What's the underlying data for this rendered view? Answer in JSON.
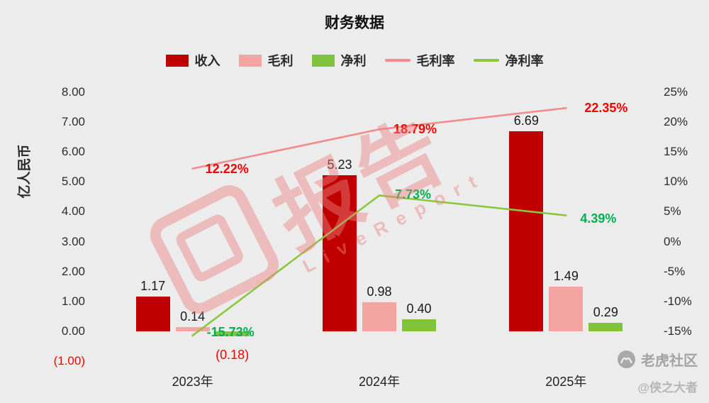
{
  "title": "财务数据",
  "ylabel_left": "亿人民币",
  "legend": [
    {
      "label": "收入",
      "type": "bar",
      "color": "#c00000"
    },
    {
      "label": "毛利",
      "type": "bar",
      "color": "#f4a4a1"
    },
    {
      "label": "净利",
      "type": "bar",
      "color": "#82c33c"
    },
    {
      "label": "毛利率",
      "type": "line",
      "color": "#f28b8b"
    },
    {
      "label": "净利率",
      "type": "line",
      "color": "#8cc63e"
    }
  ],
  "chart_data": {
    "type": "bar",
    "subtype": "bar+line combo, dual axis",
    "categories": [
      "2023年",
      "2024年",
      "2025年"
    ],
    "series": [
      {
        "name": "收入",
        "type": "bar",
        "axis": "left",
        "color": "#c00000",
        "values": [
          1.17,
          5.23,
          6.69
        ],
        "labels": [
          "1.17",
          "5.23",
          "6.69"
        ]
      },
      {
        "name": "毛利",
        "type": "bar",
        "axis": "left",
        "color": "#f4a4a1",
        "values": [
          0.14,
          0.98,
          1.49
        ],
        "labels": [
          "0.14",
          "0.98",
          "1.49"
        ]
      },
      {
        "name": "净利",
        "type": "bar",
        "axis": "left",
        "color": "#82c33c",
        "values": [
          -0.18,
          0.4,
          0.29
        ],
        "labels": [
          "(0.18)",
          "0.40",
          "0.29"
        ]
      },
      {
        "name": "毛利率",
        "type": "line",
        "axis": "right",
        "color": "#f28b8b",
        "label_color": "#f50000",
        "values": [
          12.22,
          18.79,
          22.35
        ],
        "labels": [
          "12.22%",
          "18.79%",
          "22.35%"
        ]
      },
      {
        "name": "净利率",
        "type": "line",
        "axis": "right",
        "color": "#8cc63e",
        "label_color": "#00b050",
        "values": [
          -15.73,
          7.73,
          4.39
        ],
        "labels": [
          "-15.73%",
          "7.73%",
          "4.39%"
        ]
      }
    ],
    "left_axis": {
      "label": "亿人民币",
      "ticks": [
        "8.00",
        "7.00",
        "6.00",
        "5.00",
        "4.00",
        "3.00",
        "2.00",
        "1.00",
        "0.00",
        "(1.00)"
      ],
      "min": -1,
      "max": 8,
      "negative_tick_color": "#f50000"
    },
    "right_axis": {
      "ticks": [
        "25%",
        "20%",
        "15%",
        "10%",
        "5%",
        "0%",
        "-5%",
        "-10%",
        "-15%"
      ],
      "max": 25,
      "min_shown": -15
    },
    "grid": "off",
    "legend_position": "top-center"
  },
  "watermark": {
    "brand_cn": "报告",
    "brand_en": "LiveReport"
  },
  "footer": {
    "community": "老虎社区",
    "author": "@侠之大者"
  }
}
